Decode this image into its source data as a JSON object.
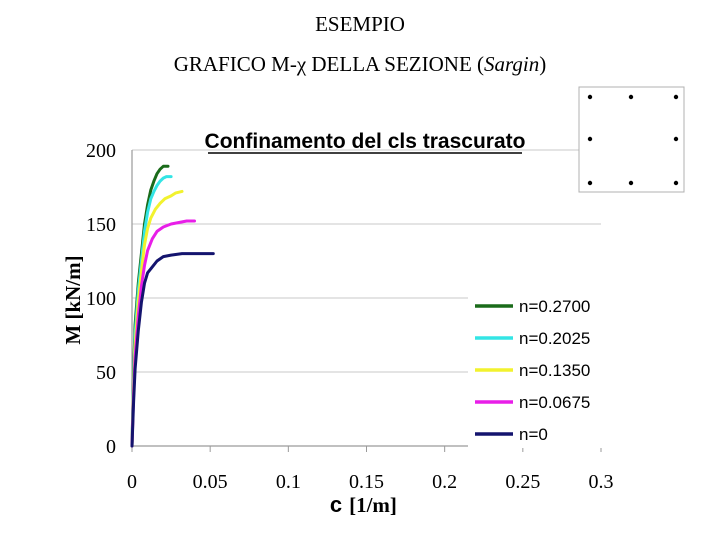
{
  "slide": {
    "title_line1": "ESEMPIO",
    "title_line2_prefix": "GRAFICO M-χ DELLA SEZIONE (",
    "title_line2_italic": "Sargin",
    "title_line2_suffix": ")"
  },
  "chart_data": {
    "type": "line",
    "title": "Confinamento del cls trascurato",
    "ylabel": "M [kN/m]",
    "xlabel_symbol": "c",
    "xlabel_unit": "[1/m]",
    "xlim": [
      0,
      0.3
    ],
    "ylim": [
      0,
      200
    ],
    "x_ticks": [
      "0",
      "0.05",
      "0.1",
      "0.15",
      "0.2",
      "0.25",
      "0.3"
    ],
    "y_ticks": [
      "0",
      "50",
      "100",
      "150",
      "200"
    ],
    "grid": true,
    "legend_position": "bottom-right",
    "series": [
      {
        "name": "n=0.2700",
        "color": "#1a6b1a",
        "points": [
          [
            0,
            0
          ],
          [
            0.001,
            50
          ],
          [
            0.002,
            82
          ],
          [
            0.004,
            110
          ],
          [
            0.006,
            130
          ],
          [
            0.008,
            150
          ],
          [
            0.01,
            163
          ],
          [
            0.012,
            173
          ],
          [
            0.014,
            179
          ],
          [
            0.016,
            184
          ],
          [
            0.018,
            187
          ],
          [
            0.02,
            189
          ],
          [
            0.023,
            189
          ]
        ]
      },
      {
        "name": "n=0.2025",
        "color": "#33e5e5",
        "points": [
          [
            0,
            0
          ],
          [
            0.001,
            45
          ],
          [
            0.002,
            75
          ],
          [
            0.004,
            105
          ],
          [
            0.006,
            125
          ],
          [
            0.008,
            145
          ],
          [
            0.01,
            158
          ],
          [
            0.012,
            167
          ],
          [
            0.014,
            172
          ],
          [
            0.016,
            176
          ],
          [
            0.018,
            179
          ],
          [
            0.02,
            181
          ],
          [
            0.022,
            182
          ],
          [
            0.025,
            182
          ]
        ]
      },
      {
        "name": "n=0.1350",
        "color": "#f2f22e",
        "points": [
          [
            0,
            0
          ],
          [
            0.001,
            40
          ],
          [
            0.002,
            68
          ],
          [
            0.004,
            98
          ],
          [
            0.006,
            118
          ],
          [
            0.008,
            136
          ],
          [
            0.01,
            147
          ],
          [
            0.012,
            154
          ],
          [
            0.015,
            160
          ],
          [
            0.018,
            164
          ],
          [
            0.021,
            167
          ],
          [
            0.025,
            169
          ],
          [
            0.028,
            171
          ],
          [
            0.032,
            172
          ]
        ]
      },
      {
        "name": "n=0.0675",
        "color": "#e81ee8",
        "points": [
          [
            0,
            0
          ],
          [
            0.001,
            35
          ],
          [
            0.002,
            60
          ],
          [
            0.004,
            88
          ],
          [
            0.006,
            108
          ],
          [
            0.008,
            122
          ],
          [
            0.01,
            132
          ],
          [
            0.013,
            140
          ],
          [
            0.016,
            145
          ],
          [
            0.02,
            148
          ],
          [
            0.025,
            150
          ],
          [
            0.03,
            151
          ],
          [
            0.035,
            152
          ],
          [
            0.04,
            152
          ]
        ]
      },
      {
        "name": "n=0",
        "color": "#14146e",
        "points": [
          [
            0,
            0
          ],
          [
            0.001,
            30
          ],
          [
            0.002,
            52
          ],
          [
            0.004,
            78
          ],
          [
            0.006,
            97
          ],
          [
            0.008,
            110
          ],
          [
            0.01,
            117
          ],
          [
            0.013,
            121
          ],
          [
            0.016,
            125
          ],
          [
            0.02,
            128
          ],
          [
            0.025,
            129
          ],
          [
            0.032,
            130
          ],
          [
            0.04,
            130
          ],
          [
            0.052,
            130
          ]
        ]
      }
    ]
  }
}
